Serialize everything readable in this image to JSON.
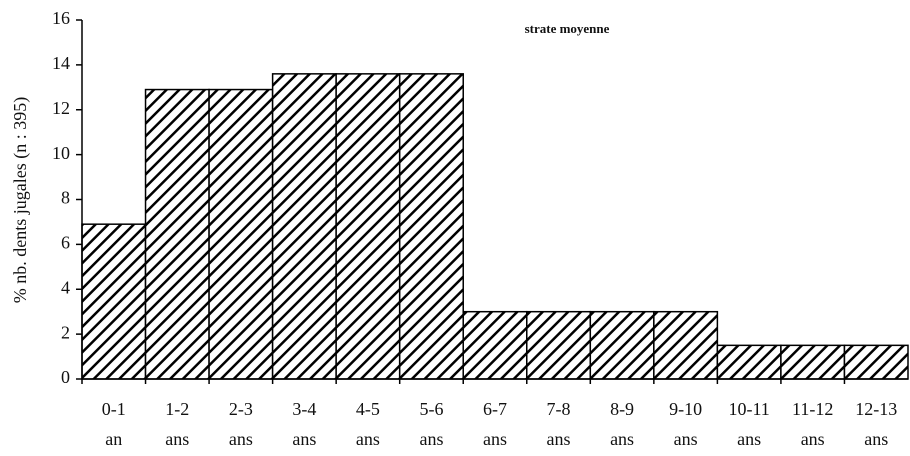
{
  "chart_data": {
    "type": "bar",
    "title": "strate moyenne",
    "y_label": "% nb. dents jugales (n : 395)",
    "categories": [
      [
        "0-1",
        "an"
      ],
      [
        "1-2",
        "ans"
      ],
      [
        "2-3",
        "ans"
      ],
      [
        "3-4",
        "ans"
      ],
      [
        "4-5",
        "ans"
      ],
      [
        "5-6",
        "ans"
      ],
      [
        "6-7",
        "ans"
      ],
      [
        "7-8",
        "ans"
      ],
      [
        "8-9",
        "ans"
      ],
      [
        "9-10",
        "ans"
      ],
      [
        "10-11",
        "ans"
      ],
      [
        "11-12",
        "ans"
      ],
      [
        "12-13",
        "ans"
      ]
    ],
    "values": [
      6.9,
      12.9,
      12.9,
      13.6,
      13.6,
      13.6,
      3.0,
      3.0,
      3.0,
      3.0,
      1.5,
      1.5,
      1.5
    ],
    "color": "#000000",
    "ylim": [
      0,
      16
    ],
    "yticks": [
      0,
      2,
      4,
      6,
      8,
      10,
      12,
      14,
      16
    ]
  }
}
